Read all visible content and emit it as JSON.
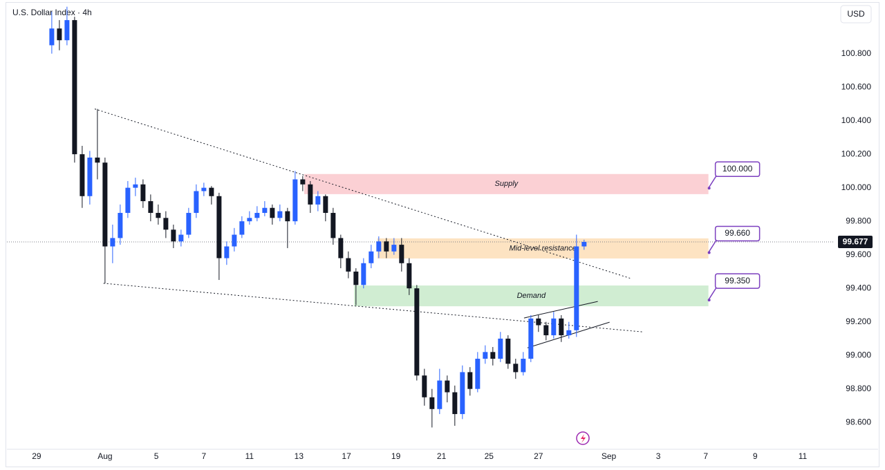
{
  "chart_data": {
    "type": "candlestick",
    "title": "U.S. Dollar Index · 4h",
    "currency": "USD",
    "up_color": "#2962ff",
    "down_color": "#131722",
    "x": [
      0,
      2,
      4,
      6,
      8,
      10,
      12,
      14,
      16,
      18,
      20,
      22,
      24,
      26,
      28,
      30,
      32,
      34,
      36,
      38,
      40,
      42,
      44,
      46,
      48,
      50,
      52,
      54,
      56,
      58,
      60,
      62,
      64,
      66,
      68,
      70,
      72,
      74,
      76,
      78,
      80,
      82,
      84,
      86,
      88,
      90,
      92,
      94,
      96,
      98,
      100,
      102,
      104,
      106,
      108,
      110,
      112,
      114,
      116,
      118,
      120,
      122,
      124,
      126,
      128,
      130,
      132,
      134,
      136,
      138,
      140
    ],
    "open": [
      100.85,
      100.95,
      100.88,
      101.0,
      100.2,
      99.95,
      100.18,
      100.15,
      99.65,
      99.7,
      99.85,
      100.0,
      100.02,
      99.92,
      99.85,
      99.82,
      99.75,
      99.68,
      99.72,
      99.85,
      99.98,
      100.0,
      99.95,
      99.58,
      99.65,
      99.72,
      99.8,
      99.82,
      99.85,
      99.88,
      99.82,
      99.86,
      99.8,
      100.05,
      100.02,
      99.9,
      99.95,
      99.85,
      99.7,
      99.58,
      99.5,
      99.42,
      99.55,
      99.62,
      99.68,
      99.62,
      99.66,
      99.55,
      99.4,
      98.88,
      98.75,
      98.68,
      98.85,
      98.78,
      98.65,
      98.9,
      98.8,
      98.98,
      99.02,
      98.98,
      99.1,
      98.95,
      98.9,
      98.98,
      99.22,
      99.18,
      99.12,
      99.22,
      99.12,
      99.15,
      99.65
    ],
    "high": [
      101.05,
      101.0,
      101.08,
      101.02,
      100.25,
      100.22,
      100.47,
      100.18,
      99.78,
      99.9,
      100.04,
      100.06,
      100.05,
      99.96,
      99.9,
      99.86,
      99.78,
      99.75,
      99.88,
      100.02,
      100.03,
      100.01,
      99.97,
      99.68,
      99.76,
      99.83,
      99.86,
      99.89,
      99.92,
      99.9,
      99.9,
      99.88,
      100.1,
      100.07,
      100.04,
      99.98,
      99.96,
      99.88,
      99.72,
      99.62,
      99.52,
      99.58,
      99.66,
      99.71,
      99.7,
      99.7,
      99.7,
      99.58,
      99.42,
      98.92,
      98.8,
      98.92,
      98.88,
      98.82,
      98.94,
      98.93,
      99.02,
      99.06,
      99.05,
      99.14,
      99.12,
      98.98,
      99.02,
      99.24,
      99.24,
      99.2,
      99.26,
      99.24,
      99.2,
      99.72,
      99.69
    ],
    "low": [
      100.8,
      100.82,
      100.85,
      100.15,
      99.88,
      99.9,
      100.05,
      99.43,
      99.55,
      99.66,
      99.82,
      99.95,
      99.88,
      99.8,
      99.78,
      99.7,
      99.64,
      99.65,
      99.7,
      99.82,
      99.95,
      99.9,
      99.45,
      99.54,
      99.62,
      99.7,
      99.78,
      99.8,
      99.83,
      99.78,
      99.8,
      99.64,
      99.78,
      99.98,
      99.85,
      99.86,
      99.8,
      99.66,
      99.52,
      99.46,
      99.3,
      99.4,
      99.52,
      99.58,
      99.58,
      99.6,
      99.5,
      99.36,
      98.85,
      98.7,
      98.57,
      98.65,
      98.72,
      98.58,
      98.62,
      98.76,
      98.78,
      98.95,
      98.94,
      98.96,
      98.92,
      98.86,
      98.88,
      98.96,
      99.14,
      99.09,
      99.1,
      99.08,
      99.1,
      99.11,
      99.63
    ],
    "close": [
      100.95,
      100.88,
      101.0,
      100.2,
      99.95,
      100.18,
      100.15,
      99.65,
      99.7,
      99.85,
      100.0,
      100.02,
      99.92,
      99.85,
      99.82,
      99.75,
      99.68,
      99.72,
      99.85,
      99.98,
      100.0,
      99.95,
      99.58,
      99.65,
      99.72,
      99.8,
      99.82,
      99.85,
      99.88,
      99.82,
      99.86,
      99.8,
      100.05,
      100.02,
      99.9,
      99.95,
      99.85,
      99.7,
      99.58,
      99.5,
      99.42,
      99.55,
      99.62,
      99.68,
      99.62,
      99.66,
      99.55,
      99.4,
      98.88,
      98.75,
      98.68,
      98.85,
      98.78,
      98.65,
      98.9,
      98.8,
      98.98,
      99.02,
      98.98,
      99.1,
      98.95,
      98.9,
      98.98,
      99.22,
      99.18,
      99.12,
      99.22,
      99.12,
      99.15,
      99.65,
      99.677
    ],
    "xlim": [
      -11.8,
      205.5
    ],
    "ylim": [
      98.44,
      101.12
    ],
    "yticks": [
      {
        "value": 98.6,
        "label": "98.600"
      },
      {
        "value": 98.8,
        "label": "98.800"
      },
      {
        "value": 99.0,
        "label": "99.000"
      },
      {
        "value": 99.2,
        "label": "99.200"
      },
      {
        "value": 99.4,
        "label": "99.400"
      },
      {
        "value": 99.6,
        "label": "99.600"
      },
      {
        "value": 99.8,
        "label": "99.800"
      },
      {
        "value": 100.0,
        "label": "100.000"
      },
      {
        "value": 100.2,
        "label": "100.200"
      },
      {
        "value": 100.4,
        "label": "100.400"
      },
      {
        "value": 100.6,
        "label": "100.600"
      },
      {
        "value": 100.8,
        "label": "100.800"
      }
    ],
    "xticks": [
      {
        "value": -4,
        "label": "29"
      },
      {
        "value": 14,
        "label": "Aug"
      },
      {
        "value": 27.5,
        "label": "5"
      },
      {
        "value": 40,
        "label": "7"
      },
      {
        "value": 52,
        "label": "11"
      },
      {
        "value": 65,
        "label": "13"
      },
      {
        "value": 77.5,
        "label": "17"
      },
      {
        "value": 90.5,
        "label": "19"
      },
      {
        "value": 102.5,
        "label": "21"
      },
      {
        "value": 115,
        "label": "25"
      },
      {
        "value": 128,
        "label": "27"
      },
      {
        "value": 146.5,
        "label": "Sep"
      },
      {
        "value": 159.5,
        "label": "3"
      },
      {
        "value": 172,
        "label": "7"
      },
      {
        "value": 185,
        "label": "9"
      },
      {
        "value": 197.5,
        "label": "11"
      }
    ],
    "last_price": {
      "value": 99.677,
      "label": "99.677"
    },
    "zones": [
      {
        "label": "Supply",
        "x": [
          66.4,
          172.7
        ],
        "y": [
          99.962,
          100.082
        ],
        "color": "#fbd0d4",
        "callout": {
          "value": 100.0,
          "label": "100.000"
        }
      },
      {
        "label": "Mid-level resistance",
        "x": [
          85.6,
          172.7
        ],
        "y": [
          99.578,
          99.698
        ],
        "color": "#fde3c2",
        "callout": {
          "value": 99.66,
          "label": "99.660"
        }
      },
      {
        "label": "Demand",
        "x": [
          79.5,
          172.7
        ],
        "y": [
          99.293,
          99.417
        ],
        "color": "#d0edd2",
        "callout": {
          "value": 99.35,
          "label": "99.350"
        }
      }
    ],
    "trendlines": [
      {
        "x": [
          11.3,
          152.4
        ],
        "y": [
          100.47,
          99.458
        ],
        "style": "dotted"
      },
      {
        "x": [
          13.6,
          155.5
        ],
        "y": [
          99.43,
          99.14
        ],
        "style": "dotted"
      },
      {
        "x": [
          124.2,
          143.6
        ],
        "y": [
          99.223,
          99.322
        ],
        "style": "solid"
      },
      {
        "x": [
          125.1,
          146.7
        ],
        "y": [
          99.045,
          99.198
        ],
        "style": "solid"
      }
    ],
    "callout_color": "#7b3fbf"
  }
}
